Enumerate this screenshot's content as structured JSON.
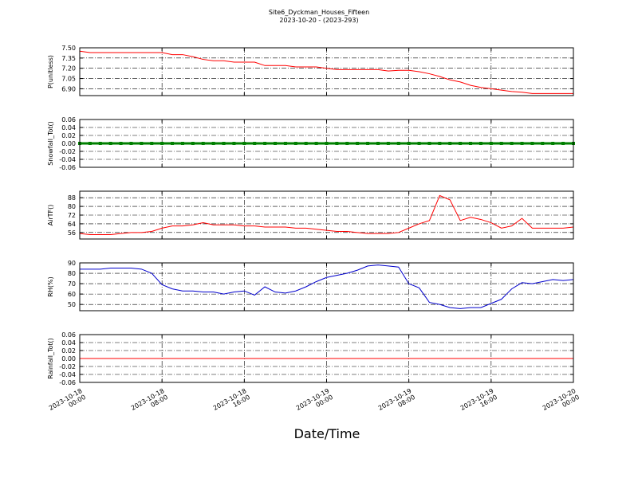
{
  "chart_data": {
    "title": "Site6_Dyckman_Houses_Fifteen",
    "subtitle": "2023-10-20 - (2023-293)",
    "xlabel": "Date/Time",
    "grid": true,
    "xlim": [
      "2023-10-18 00:00",
      "2023-10-20 00:00"
    ],
    "xticks": [
      "2023-10-18 00:00",
      "2023-10-18 08:00",
      "2023-10-18 16:00",
      "2023-10-19 00:00",
      "2023-10-19 08:00",
      "2023-10-19 16:00",
      "2023-10-20 00:00"
    ],
    "x": [
      "2023-10-18 00:00",
      "2023-10-18 01:00",
      "2023-10-18 02:00",
      "2023-10-18 03:00",
      "2023-10-18 04:00",
      "2023-10-18 05:00",
      "2023-10-18 06:00",
      "2023-10-18 07:00",
      "2023-10-18 08:00",
      "2023-10-18 09:00",
      "2023-10-18 10:00",
      "2023-10-18 11:00",
      "2023-10-18 12:00",
      "2023-10-18 13:00",
      "2023-10-18 14:00",
      "2023-10-18 15:00",
      "2023-10-18 16:00",
      "2023-10-18 17:00",
      "2023-10-18 18:00",
      "2023-10-18 19:00",
      "2023-10-18 20:00",
      "2023-10-18 21:00",
      "2023-10-18 22:00",
      "2023-10-18 23:00",
      "2023-10-19 00:00",
      "2023-10-19 01:00",
      "2023-10-19 02:00",
      "2023-10-19 03:00",
      "2023-10-19 04:00",
      "2023-10-19 05:00",
      "2023-10-19 06:00",
      "2023-10-19 07:00",
      "2023-10-19 08:00",
      "2023-10-19 09:00",
      "2023-10-19 10:00",
      "2023-10-19 11:00",
      "2023-10-19 12:00",
      "2023-10-19 13:00",
      "2023-10-19 14:00",
      "2023-10-19 15:00",
      "2023-10-19 16:00",
      "2023-10-19 17:00",
      "2023-10-19 18:00",
      "2023-10-19 19:00",
      "2023-10-19 20:00",
      "2023-10-19 21:00",
      "2023-10-19 22:00",
      "2023-10-19 23:00",
      "2023-10-20 00:00"
    ],
    "charts": [
      {
        "type": "line",
        "ylabel": "P(unitless)",
        "ylim": [
          6.8,
          7.5
        ],
        "yticks": [
          {
            "value": 6.9,
            "label": "6.90"
          },
          7.05,
          {
            "value": 7.2,
            "label": "7.20"
          },
          7.35,
          {
            "value": 7.5,
            "label": "7.50"
          }
        ],
        "series": [
          {
            "color": "#ff0000",
            "values": [
              7.45,
              7.43,
              7.43,
              7.43,
              7.43,
              7.43,
              7.43,
              7.43,
              7.43,
              7.4,
              7.4,
              7.37,
              7.33,
              7.31,
              7.31,
              7.29,
              7.29,
              7.29,
              7.24,
              7.24,
              7.24,
              7.22,
              7.22,
              7.22,
              7.2,
              7.18,
              7.18,
              7.18,
              7.18,
              7.18,
              7.16,
              7.17,
              7.17,
              7.15,
              7.12,
              7.08,
              7.03,
              7.0,
              6.95,
              6.92,
              6.9,
              6.88,
              6.86,
              6.85,
              6.83,
              6.83,
              6.83,
              6.83,
              6.83
            ]
          }
        ]
      },
      {
        "type": "line",
        "ylabel": "Snowfall_Tot()",
        "ylim": [
          -0.06,
          0.06
        ],
        "markers": true,
        "yticks": [
          -0.06,
          -0.04,
          -0.02,
          {
            "value": 0,
            "label": "0.00"
          },
          0.02,
          0.04,
          0.06
        ],
        "series": [
          {
            "color": "#008000",
            "values": [
              0,
              0,
              0,
              0,
              0,
              0,
              0,
              0,
              0,
              0,
              0,
              0,
              0,
              0,
              0,
              0,
              0,
              0,
              0,
              0,
              0,
              0,
              0,
              0,
              0,
              0,
              0,
              0,
              0,
              0,
              0,
              0,
              0,
              0,
              0,
              0,
              0,
              0,
              0,
              0,
              0,
              0,
              0,
              0,
              0,
              0,
              0,
              0,
              0
            ]
          }
        ]
      },
      {
        "type": "line",
        "ylabel": "AirTF()",
        "ylim": [
          50,
          94
        ],
        "yticks": [
          56,
          64,
          72,
          80,
          88
        ],
        "series": [
          {
            "color": "#ff0000",
            "values": [
              55,
              54,
              54,
              54,
              55,
              56,
              56,
              57,
              60,
              62,
              62,
              63,
              65,
              63,
              63,
              63,
              62,
              62,
              61,
              61,
              61,
              60,
              60,
              59,
              58,
              57,
              57,
              56,
              55,
              55,
              55,
              56,
              60,
              64,
              67,
              90,
              86,
              67,
              70,
              68,
              65,
              60,
              62,
              69,
              60,
              60,
              60,
              60,
              61
            ]
          }
        ]
      },
      {
        "type": "line",
        "ylabel": "RH(%)",
        "ylim": [
          44,
          90
        ],
        "yticks": [
          50,
          60,
          70,
          80,
          90
        ],
        "series": [
          {
            "color": "#0000cc",
            "values": [
              84,
              84,
              84,
              85,
              85,
              85,
              84,
              80,
              69,
              65,
              63,
              63,
              62,
              62,
              60,
              62,
              63,
              59,
              67,
              62,
              61,
              63,
              67,
              72,
              76,
              78,
              80,
              83,
              87,
              88,
              87,
              86,
              70,
              66,
              52,
              50,
              47,
              46,
              47,
              47,
              51,
              55,
              65,
              71,
              70,
              72,
              74,
              73,
              74
            ]
          }
        ]
      },
      {
        "type": "line",
        "ylabel": "Rainfall_Tot()",
        "ylim": [
          -0.06,
          0.06
        ],
        "yticks": [
          -0.06,
          -0.04,
          -0.02,
          {
            "value": 0,
            "label": "0.00"
          },
          0.02,
          0.04,
          0.06
        ],
        "series": [
          {
            "color": "#ff0000",
            "values": [
              0,
              0,
              0,
              0,
              0,
              0,
              0,
              0,
              0,
              0,
              0,
              0,
              0,
              0,
              0,
              0,
              0,
              0,
              0,
              0,
              0,
              0,
              0,
              0,
              0,
              0,
              0,
              0,
              0,
              0,
              0,
              0,
              0,
              0,
              0,
              0,
              0,
              0,
              0,
              0,
              0,
              0,
              0,
              0,
              0,
              0,
              0,
              0,
              0
            ]
          }
        ]
      }
    ]
  }
}
